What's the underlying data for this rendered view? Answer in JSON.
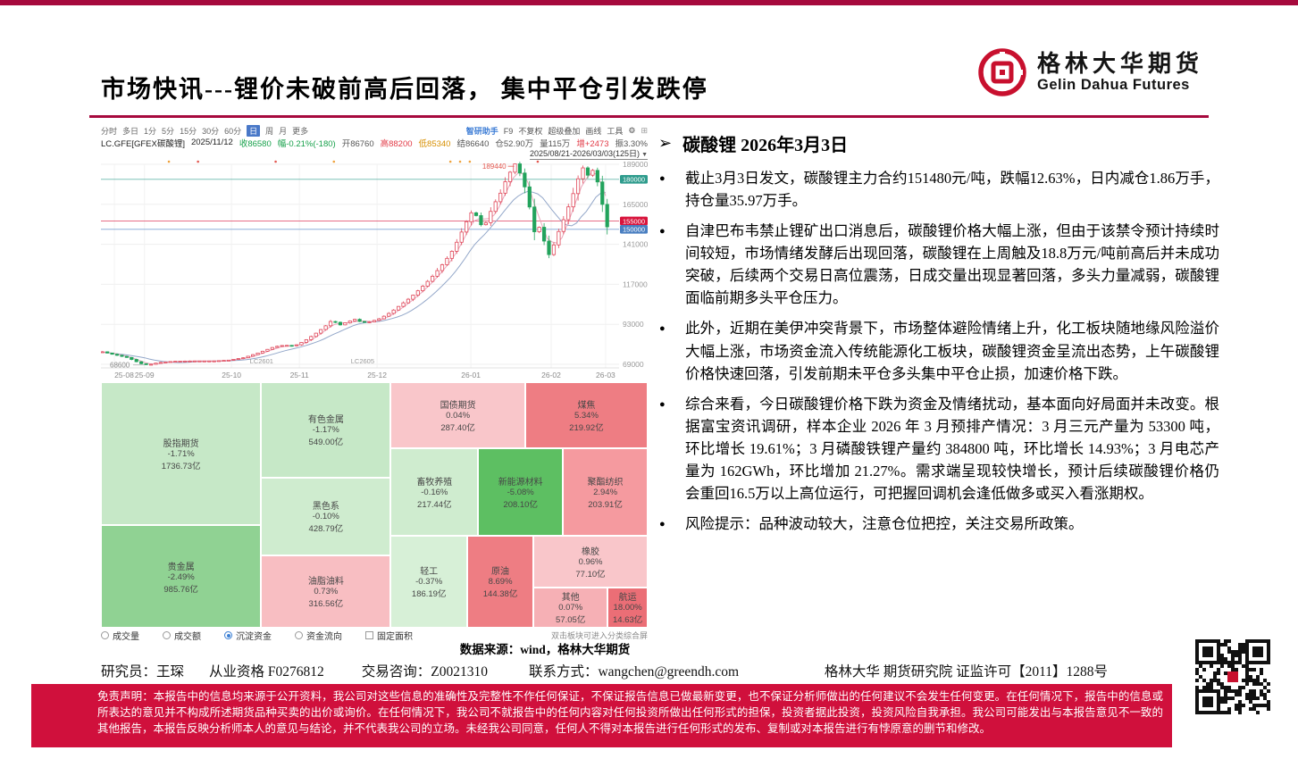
{
  "page": {
    "title": "市场快讯---锂价未破前高后回落， 集中平仓引发跌停"
  },
  "brand": {
    "name_cn": "格林大华期货",
    "name_en": "Gelin Dahua Futures",
    "logo_red": "#C8102E",
    "accent": "#A6093D"
  },
  "chart": {
    "tabs": [
      "分时",
      "多日",
      "1分",
      "5分",
      "15分",
      "30分",
      "60分",
      "日",
      "周",
      "月",
      "更多"
    ],
    "active_tab": "日",
    "tools": [
      "智研助手",
      "F9",
      "不复权",
      "超级叠加",
      "画线",
      "工具"
    ],
    "gear_icon": "⚙",
    "more_icon": "⊞",
    "date_range": "2025/08/21-2026/03/03(125日)",
    "info_items": [
      {
        "t": "LC.GFE[GFEX碳酸锂]",
        "c": "#222"
      },
      {
        "t": "2025/11/12",
        "c": "#222"
      },
      {
        "t": "收86580",
        "c": "#16a04a"
      },
      {
        "t": "幅-0.21%(-180)",
        "c": "#16a04a"
      },
      {
        "t": "开86760",
        "c": "#555555"
      },
      {
        "t": "高88200",
        "c": "#e23a46"
      },
      {
        "t": "低85340",
        "c": "#d78f00"
      },
      {
        "t": "结86640",
        "c": "#555555"
      },
      {
        "t": "仓52.90万",
        "c": "#555555"
      },
      {
        "t": "量115万",
        "c": "#555555"
      },
      {
        "t": "增+2473",
        "c": "#e23a46"
      },
      {
        "t": "振3.30%",
        "c": "#555555"
      }
    ]
  },
  "chart_data": [
    {
      "type": "candlestick",
      "title": "LC.GFE[GFEX碳酸锂] 日线",
      "y_ticks": [
        189000,
        165000,
        141000,
        117000,
        93000,
        69000
      ],
      "months": [
        {
          "label": "25-08",
          "f": 0.026
        },
        {
          "label": "25-09",
          "f": 0.084
        },
        {
          "label": "25-10",
          "f": 0.252
        },
        {
          "label": "25-11",
          "f": 0.383
        },
        {
          "label": "25-12",
          "f": 0.533
        },
        {
          "label": "26-01",
          "f": 0.714
        },
        {
          "label": "26-02",
          "f": 0.869
        },
        {
          "label": "26-03",
          "f": 0.974
        }
      ],
      "contracts": [
        {
          "label": "LC2601",
          "f": 0.31
        },
        {
          "label": "LC2605",
          "f": 0.505
        }
      ],
      "levels": [
        {
          "price": 180000,
          "label": "180000",
          "color": "#2f9c8d"
        },
        {
          "price": 155000,
          "label": "155000",
          "color": "#d8143c"
        },
        {
          "price": 150000,
          "label": "150000",
          "color": "#4a7fc1"
        }
      ],
      "annotations": {
        "high": "189440",
        "high_f": 0.817,
        "low": "68600",
        "low_f": 0.09
      },
      "up_color": "#e0485a",
      "down_color": "#22a35c",
      "last_close": 151480,
      "trend": [
        [
          0,
          76500
        ],
        [
          0.02,
          75000
        ],
        [
          0.05,
          73000
        ],
        [
          0.075,
          69500
        ],
        [
          0.09,
          68600
        ],
        [
          0.11,
          70000
        ],
        [
          0.14,
          70800
        ],
        [
          0.18,
          71000
        ],
        [
          0.22,
          71000
        ],
        [
          0.25,
          71500
        ],
        [
          0.28,
          73000
        ],
        [
          0.31,
          76000
        ],
        [
          0.34,
          79500
        ],
        [
          0.36,
          80500
        ],
        [
          0.38,
          80000
        ],
        [
          0.4,
          83000
        ],
        [
          0.42,
          87000
        ],
        [
          0.44,
          91500
        ],
        [
          0.455,
          95500
        ],
        [
          0.47,
          92500
        ],
        [
          0.485,
          94500
        ],
        [
          0.5,
          96000
        ],
        [
          0.515,
          94000
        ],
        [
          0.53,
          94500
        ],
        [
          0.55,
          96500
        ],
        [
          0.57,
          100000
        ],
        [
          0.59,
          104500
        ],
        [
          0.61,
          109000
        ],
        [
          0.63,
          114500
        ],
        [
          0.65,
          120500
        ],
        [
          0.67,
          127500
        ],
        [
          0.69,
          135500
        ],
        [
          0.705,
          144000
        ],
        [
          0.714,
          150000
        ],
        [
          0.725,
          157000
        ],
        [
          0.735,
          162000
        ],
        [
          0.745,
          155000
        ],
        [
          0.755,
          150500
        ],
        [
          0.765,
          158000
        ],
        [
          0.775,
          164500
        ],
        [
          0.79,
          172500
        ],
        [
          0.8,
          180000
        ],
        [
          0.817,
          189440
        ],
        [
          0.83,
          182000
        ],
        [
          0.84,
          172000
        ],
        [
          0.85,
          158000
        ],
        [
          0.857,
          146500
        ],
        [
          0.864,
          152500
        ],
        [
          0.87,
          147000
        ],
        [
          0.878,
          140500
        ],
        [
          0.885,
          134500
        ],
        [
          0.893,
          139500
        ],
        [
          0.9,
          146000
        ],
        [
          0.91,
          153000
        ],
        [
          0.92,
          161000
        ],
        [
          0.93,
          169000
        ],
        [
          0.94,
          178000
        ],
        [
          0.95,
          188000
        ],
        [
          0.96,
          182000
        ],
        [
          0.975,
          186500
        ],
        [
          1,
          151480
        ]
      ]
    },
    {
      "type": "treemap",
      "metric": "沉淀资金",
      "unit": "亿",
      "blocks": [
        {
          "name": "股指期货",
          "pct": "-1.71%",
          "value": "1736.73亿",
          "color": "#c6e8c7",
          "rect": [
            0,
            0,
            0.293,
            0.582
          ]
        },
        {
          "name": "贵金属",
          "pct": "-2.49%",
          "value": "985.76亿",
          "color": "#90d293",
          "rect": [
            0,
            0.582,
            0.293,
            0.418
          ]
        },
        {
          "name": "有色金属",
          "pct": "-1.17%",
          "value": "549.00亿",
          "color": "#c6e8c7",
          "rect": [
            0.293,
            0,
            0.237,
            0.389
          ]
        },
        {
          "name": "黑色系",
          "pct": "-0.10%",
          "value": "428.79亿",
          "color": "#cfeccf",
          "rect": [
            0.293,
            0.389,
            0.237,
            0.316
          ]
        },
        {
          "name": "油脂油料",
          "pct": "0.73%",
          "value": "316.56亿",
          "color": "#f8bec2",
          "rect": [
            0.293,
            0.705,
            0.237,
            0.295
          ]
        },
        {
          "name": "国债期货",
          "pct": "0.04%",
          "value": "287.40亿",
          "color": "#f9c6ca",
          "rect": [
            0.53,
            0,
            0.246,
            0.269
          ]
        },
        {
          "name": "煤焦",
          "pct": "5.34%",
          "value": "219.92亿",
          "color": "#ee7d83",
          "rect": [
            0.776,
            0,
            0.224,
            0.269
          ]
        },
        {
          "name": "畜牧养殖",
          "pct": "-0.16%",
          "value": "217.44亿",
          "color": "#cfeccf",
          "rect": [
            0.53,
            0.269,
            0.16,
            0.356
          ]
        },
        {
          "name": "新能源材料",
          "pct": "-5.08%",
          "value": "208.10亿",
          "color": "#5dbf62",
          "rect": [
            0.69,
            0.269,
            0.155,
            0.356
          ]
        },
        {
          "name": "聚酯纺织",
          "pct": "2.94%",
          "value": "203.91亿",
          "color": "#f59a9f",
          "rect": [
            0.845,
            0.269,
            0.155,
            0.356
          ]
        },
        {
          "name": "轻工",
          "pct": "-0.37%",
          "value": "186.19亿",
          "color": "#d7f0d7",
          "rect": [
            0.53,
            0.625,
            0.14,
            0.375
          ]
        },
        {
          "name": "原油",
          "pct": "8.69%",
          "value": "144.38亿",
          "color": "#ee7d83",
          "rect": [
            0.67,
            0.625,
            0.121,
            0.375
          ]
        },
        {
          "name": "橡胶",
          "pct": "0.96%",
          "value": "77.10亿",
          "color": "#f9c6ca",
          "rect": [
            0.791,
            0.625,
            0.209,
            0.211
          ]
        },
        {
          "name": "其他",
          "pct": "0.07%",
          "value": "57.05亿",
          "color": "#f6b0b5",
          "rect": [
            0.791,
            0.836,
            0.136,
            0.164
          ]
        },
        {
          "name": "航运",
          "pct": "18.00%",
          "value": "14.63亿",
          "color": "#eb6e76",
          "rect": [
            0.927,
            0.836,
            0.073,
            0.164
          ]
        }
      ]
    }
  ],
  "treemap": {
    "controls": [
      {
        "label": "成交量",
        "type": "radio",
        "checked": false
      },
      {
        "label": "成交额",
        "type": "radio",
        "checked": false
      },
      {
        "label": "沉淀资金",
        "type": "radio",
        "checked": true
      },
      {
        "label": "资金流向",
        "type": "radio",
        "checked": false
      },
      {
        "label": "固定面积",
        "type": "checkbox",
        "checked": false
      }
    ],
    "hint": "双击板块可进入分类综合屏"
  },
  "source_note": "数据来源：wind，格林大华期货",
  "report": {
    "heading": "碳酸锂  2026年3月3日",
    "bullet_icon": "●",
    "arrow_icon": "➢",
    "bullets": [
      "截止3月3日发文，碳酸锂主力合约151480元/吨，跌幅12.63%，日内减仓1.86万手，持仓量35.97万手。",
      "自津巴布韦禁止锂矿出口消息后，碳酸锂价格大幅上涨，但由于该禁令预计持续时间较短，市场情绪发酵后出现回落，碳酸锂在上周触及18.8万元/吨前高后并未成功突破，后续两个交易日高位震荡，日成交量出现显著回落，多头力量减弱，碳酸锂面临前期多头平仓压力。",
      "此外，近期在美伊冲突背景下，市场整体避险情绪上升，化工板块随地缘风险溢价大幅上涨，市场资金流入传统能源化工板块，碳酸锂资金呈流出态势，上午碳酸锂价格快速回落，引发前期未平仓多头集中平仓止损，加速价格下跌。",
      "综合来看，今日碳酸锂价格下跌为资金及情绪扰动，基本面向好局面并未改变。根据富宝资讯调研，样本企业 2026 年 3 月预排产情况：3 月三元产量为 53300 吨，环比增长 19.61%；3 月磷酸铁锂产量约 384800 吨，环比增长 14.93%；3 月电芯产量为 162GWh，环比增加 21.27%。需求端呈现较快增长，预计后续碳酸锂价格仍会重回16.5万以上高位运行，可把握回调机会逢低做多或买入看涨期权。",
      "风险提示：品种波动较大，注意仓位把控，关注交易所政策。"
    ]
  },
  "footer": {
    "researcher": "研究员：王琛",
    "qualification": "从业资格 F0276812",
    "advisory": "交易咨询：Z0021310",
    "contact": "联系方式：wangchen@greendh.com",
    "institute": "格林大华 期货研究院  证监许可【2011】1288号",
    "disclaimer": "免责声明：本报告中的信息均来源于公开资料，我公司对这些信息的准确性及完整性不作任何保证，不保证报告信息已做最新变更，也不保证分析师做出的任何建议不会发生任何变更。在任何情况下，报告中的信息或所表达的意见并不构成所述期货品种买卖的出价或询价。在任何情况下，我公司不就报告中的任何内容对任何投资所做出任何形式的担保，投资者据此投资，投资风险自我承担。我公司可能发出与本报告意见不一致的其他报告，本报告反映分析师本人的意见与结论，并不代表我公司的立场。未经我公司同意，任何人不得对本报告进行任何形式的发布、复制或对本报告进行有悖原意的删节和修改。"
  },
  "disclaimer_bg": "#D0103C"
}
